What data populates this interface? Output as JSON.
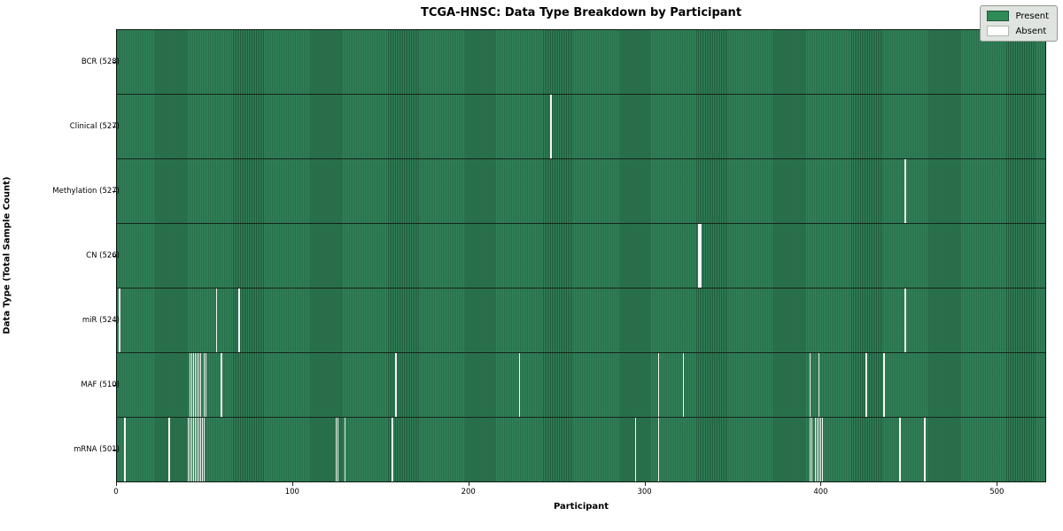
{
  "chart_data": {
    "type": "heatmap",
    "title": "TCGA-HNSC: Data Type Breakdown by Participant",
    "xlabel": "Participant",
    "ylabel": "Data Type (Total Sample Count)",
    "n_participants": 528,
    "x_ticks": [
      0,
      100,
      200,
      300,
      400,
      500
    ],
    "xlim": [
      0,
      528
    ],
    "grid": false,
    "legend_position": "upper right",
    "legend": [
      {
        "label": "Present",
        "color": "#2e8b57"
      },
      {
        "label": "Absent",
        "color": "#ffffff"
      }
    ],
    "cell_colors": {
      "present": "#2e8157",
      "absent": "#f7f7f5",
      "row_divider": "#15241a"
    },
    "rows": [
      {
        "label": "BCR (528)",
        "data_type": "BCR",
        "total_samples": 528,
        "absent_count": 0,
        "absent_participants": []
      },
      {
        "label": "Clinical (527)",
        "data_type": "Clinical",
        "total_samples": 527,
        "absent_count": 1,
        "absent_participants": [
          247
        ]
      },
      {
        "label": "Methylation (527)",
        "data_type": "Methylation",
        "total_samples": 527,
        "absent_count": 1,
        "absent_participants": [
          448
        ]
      },
      {
        "label": "CN (526)",
        "data_type": "CN",
        "total_samples": 526,
        "absent_count": 2,
        "absent_participants": [
          331,
          332
        ]
      },
      {
        "label": "miR (524)",
        "data_type": "miR",
        "total_samples": 524,
        "absent_count": 4,
        "absent_participants": [
          2,
          57,
          70,
          448
        ]
      },
      {
        "label": "MAF (510)",
        "data_type": "MAF",
        "total_samples": 510,
        "absent_count": 18,
        "absent_participants": [
          42,
          43,
          44,
          45,
          46,
          47,
          48,
          50,
          51,
          60,
          159,
          229,
          308,
          322,
          394,
          399,
          426,
          436
        ]
      },
      {
        "label": "mRNA (501)",
        "data_type": "mRNA",
        "total_samples": 501,
        "absent_count": 27,
        "absent_participants": [
          5,
          30,
          41,
          42,
          43,
          44,
          45,
          46,
          47,
          48,
          49,
          50,
          125,
          126,
          130,
          157,
          295,
          308,
          394,
          395,
          397,
          398,
          399,
          400,
          401,
          445,
          459
        ]
      }
    ]
  }
}
